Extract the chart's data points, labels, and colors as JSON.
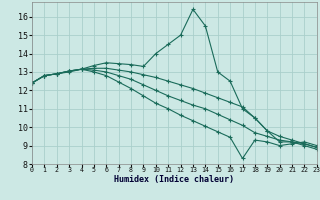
{
  "xlabel": "Humidex (Indice chaleur)",
  "bg_color": "#cce8e4",
  "grid_color": "#aacfcb",
  "line_color": "#1a6b5a",
  "xlim": [
    0,
    23
  ],
  "ylim": [
    8,
    16.8
  ],
  "yticks": [
    8,
    9,
    10,
    11,
    12,
    13,
    14,
    15,
    16
  ],
  "xticks": [
    0,
    1,
    2,
    3,
    4,
    5,
    6,
    7,
    8,
    9,
    10,
    11,
    12,
    13,
    14,
    15,
    16,
    17,
    18,
    19,
    20,
    21,
    22,
    23
  ],
  "series": [
    {
      "x": [
        0,
        1,
        2,
        3,
        4,
        5,
        6,
        7,
        8,
        9,
        10,
        11,
        12,
        13,
        14,
        15,
        16,
        17,
        18,
        19,
        20,
        21,
        22,
        23
      ],
      "y": [
        12.4,
        12.8,
        12.9,
        13.0,
        13.15,
        13.35,
        13.5,
        13.45,
        13.4,
        13.3,
        14.0,
        14.5,
        15.0,
        16.4,
        15.5,
        13.0,
        12.5,
        11.0,
        10.5,
        9.8,
        9.2,
        9.2,
        9.0,
        8.8
      ]
    },
    {
      "x": [
        0,
        1,
        2,
        3,
        4,
        5,
        6,
        7,
        8,
        9,
        10,
        11,
        12,
        13,
        14,
        15,
        16,
        17,
        18,
        19,
        20,
        21,
        22,
        23
      ],
      "y": [
        12.4,
        12.8,
        12.9,
        13.05,
        13.15,
        13.2,
        13.2,
        13.1,
        13.0,
        12.85,
        12.7,
        12.5,
        12.3,
        12.1,
        11.85,
        11.6,
        11.35,
        11.1,
        10.5,
        9.8,
        9.5,
        9.3,
        9.1,
        8.9
      ]
    },
    {
      "x": [
        0,
        1,
        2,
        3,
        4,
        5,
        6,
        7,
        8,
        9,
        10,
        11,
        12,
        13,
        14,
        15,
        16,
        17,
        18,
        19,
        20,
        21,
        22,
        23
      ],
      "y": [
        12.4,
        12.8,
        12.9,
        13.05,
        13.15,
        13.1,
        13.0,
        12.8,
        12.6,
        12.3,
        12.0,
        11.7,
        11.45,
        11.2,
        11.0,
        10.7,
        10.4,
        10.1,
        9.7,
        9.5,
        9.3,
        9.2,
        9.1,
        8.9
      ]
    },
    {
      "x": [
        0,
        1,
        2,
        3,
        4,
        5,
        6,
        7,
        8,
        9,
        10,
        11,
        12,
        13,
        14,
        15,
        16,
        17,
        18,
        19,
        20,
        21,
        22,
        23
      ],
      "y": [
        12.4,
        12.8,
        12.9,
        13.05,
        13.15,
        13.0,
        12.8,
        12.45,
        12.1,
        11.7,
        11.3,
        11.0,
        10.65,
        10.35,
        10.05,
        9.75,
        9.45,
        8.3,
        9.3,
        9.2,
        9.0,
        9.1,
        9.2,
        9.0
      ]
    }
  ]
}
